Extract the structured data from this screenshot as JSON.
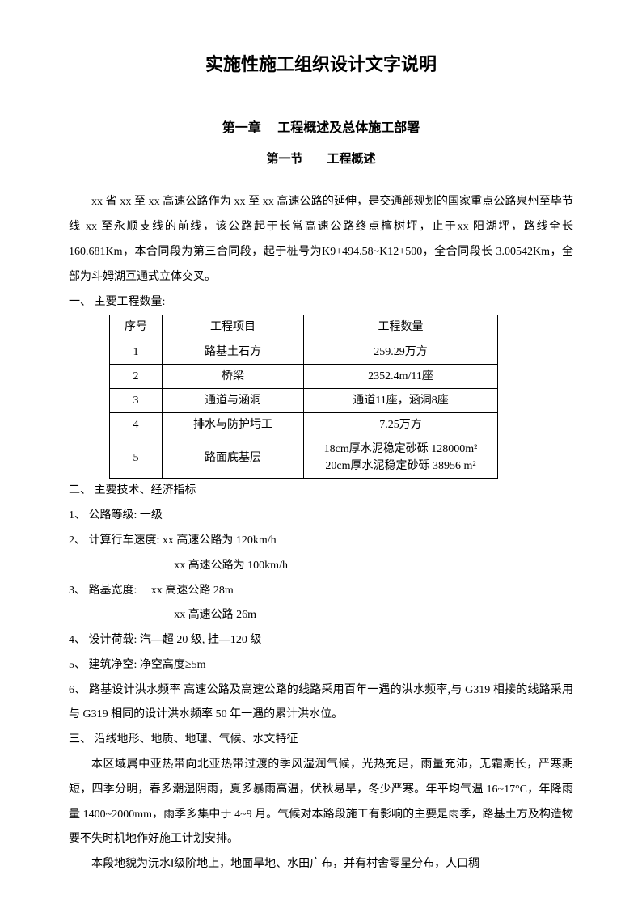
{
  "title": "实施性施工组织设计文字说明",
  "chapter": "第一章　 工程概述及总体施工部署",
  "section": "第一节　　工程概述",
  "para1": "xx 省 xx 至 xx 高速公路作为 xx 至 xx 高速公路的延伸，是交通部规划的国家重点公路泉州至毕节线 xx 至永顺支线的前线，该公路起于长常高速公路终点檀树坪，止于xx 阳湖坪，路线全长 160.681Km，本合同段为第三合同段，起于桩号为K9+494.58~K12+500，全合同段长 3.00542Km，全部为斗姆湖互通式立体交叉。",
  "heading1": "一、 主要工程数量:",
  "table": {
    "headers": [
      "序号",
      "工程项目",
      "工程数量"
    ],
    "rows": [
      [
        "1",
        "路基土石方",
        "259.29万方"
      ],
      [
        "2",
        "桥梁",
        "2352.4m/11座"
      ],
      [
        "3",
        "通道与涵洞",
        "通道11座，涵洞8座"
      ],
      [
        "4",
        "排水与防护圬工",
        "7.25万方"
      ],
      [
        "5",
        "路面底基层",
        "18cm厚水泥稳定砂砾 128000m²\n20cm厚水泥稳定砂砾 38956 m²"
      ]
    ]
  },
  "heading2": "二、 主要技术、经济指标",
  "specs": {
    "item1": "1、 公路等级: 一级",
    "item2": "2、 计算行车速度: xx 高速公路为 120km/h",
    "item2b": "xx 高速公路为 100km/h",
    "item3": "3、 路基宽度: 　xx 高速公路 28m",
    "item3b": "xx 高速公路 26m",
    "item4": "4、 设计荷载: 汽—超 20 级, 挂—120 级",
    "item5": "5、 建筑净空: 净空高度≥5m",
    "item6": "6、 路基设计洪水频率 高速公路及高速公路的线路采用百年一遇的洪水频率,与 G319 相接的线路采用与 G319 相同的设计洪水频率 50 年一遇的累计洪水位。"
  },
  "heading3": "三、 沿线地形、地质、地理、气候、水文特征",
  "para2": "本区域属中亚热带向北亚热带过渡的季风湿润气候，光热充足，雨量充沛，无霜期长，严寒期短，四季分明，春多潮湿阴雨，夏多暴雨高温，伏秋易旱，冬少严寒。年平均气温 16~17°C，年降雨量 1400~2000mm，雨季多集中于 4~9 月。气候对本路段施工有影响的主要是雨季，路基土方及构造物要不失时机地作好施工计划安排。",
  "para3": "本段地貌为沅水Ⅰ级阶地上，地面旱地、水田广布，并有村舍零星分布，人口稠"
}
